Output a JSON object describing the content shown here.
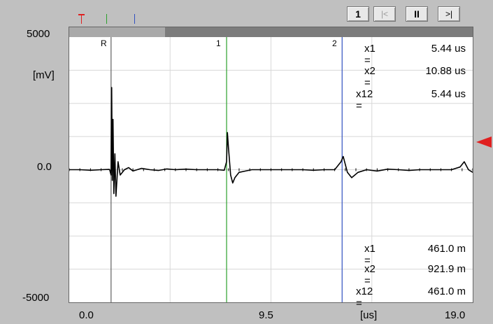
{
  "toolbar": {
    "channel_label": "1",
    "first_label": "|<",
    "pause_label": "II",
    "last_label": ">|"
  },
  "y_axis": {
    "top_label": "5000",
    "unit_label": "[mV]",
    "mid_label": "0.0",
    "bottom_label": "-5000"
  },
  "x_axis": {
    "left_label": "0.0",
    "mid_label": "9.5",
    "unit_label": "[us]",
    "right_label": "19.0"
  },
  "cursors": [
    {
      "label": "R",
      "color": "#606060"
    },
    {
      "label": "1",
      "color": "#2ca02c"
    },
    {
      "label": "2",
      "color": "#3050c0"
    }
  ],
  "readout_time": [
    {
      "label": "x1 =",
      "value": "5.44 us"
    },
    {
      "label": "x2 =",
      "value": "10.88 us"
    },
    {
      "label": "x12 =",
      "value": "5.44 us"
    }
  ],
  "readout_distance": [
    {
      "label": "x1 =",
      "value": "461.0 m"
    },
    {
      "label": "x2 =",
      "value": "921.9 m"
    },
    {
      "label": "x12 =",
      "value": "461.0 m"
    }
  ],
  "colors": {
    "trace": "#000000",
    "grid": "#d8d8d8",
    "trigger_marker": "#e02020"
  },
  "chart_data": {
    "type": "line",
    "xlim": [
      0.0,
      19.0
    ],
    "ylim": [
      -5000,
      5000
    ],
    "xlabel": "[us]",
    "ylabel": "[mV]",
    "grid": true,
    "cursor_positions_us": {
      "R": 1.97,
      "1": 7.41,
      "2": 12.85
    },
    "series": [
      {
        "x": [
          0.0,
          0.5,
          1.0,
          1.5,
          1.9,
          1.97,
          2.0,
          2.03,
          2.06,
          2.1,
          2.15,
          2.2,
          2.3,
          2.4,
          2.6,
          2.8,
          3.0,
          3.4,
          3.8,
          4.2,
          4.6,
          5.0,
          5.5,
          6.0,
          6.5,
          7.0,
          7.3,
          7.41,
          7.45,
          7.5,
          7.6,
          7.7,
          7.8,
          8.0,
          8.3,
          8.6,
          9.0,
          9.5,
          10.0,
          10.5,
          11.0,
          11.5,
          12.0,
          12.5,
          12.8,
          12.9,
          13.0,
          13.1,
          13.3,
          13.6,
          14.0,
          14.5,
          15.0,
          15.5,
          16.0,
          16.5,
          17.0,
          17.5,
          18.0,
          18.4,
          18.6,
          18.8,
          19.0
        ],
        "y": [
          0,
          0,
          -20,
          0,
          10,
          -200,
          3100,
          -400,
          1900,
          -900,
          600,
          -1000,
          300,
          -200,
          0,
          80,
          -50,
          50,
          0,
          -30,
          30,
          0,
          20,
          0,
          0,
          0,
          -20,
          300,
          1400,
          800,
          -200,
          -500,
          -300,
          -100,
          -50,
          0,
          0,
          0,
          0,
          0,
          0,
          -20,
          0,
          0,
          300,
          500,
          200,
          -100,
          -300,
          -100,
          0,
          -50,
          20,
          0,
          -30,
          0,
          0,
          0,
          0,
          100,
          300,
          0,
          -100
        ]
      }
    ]
  }
}
